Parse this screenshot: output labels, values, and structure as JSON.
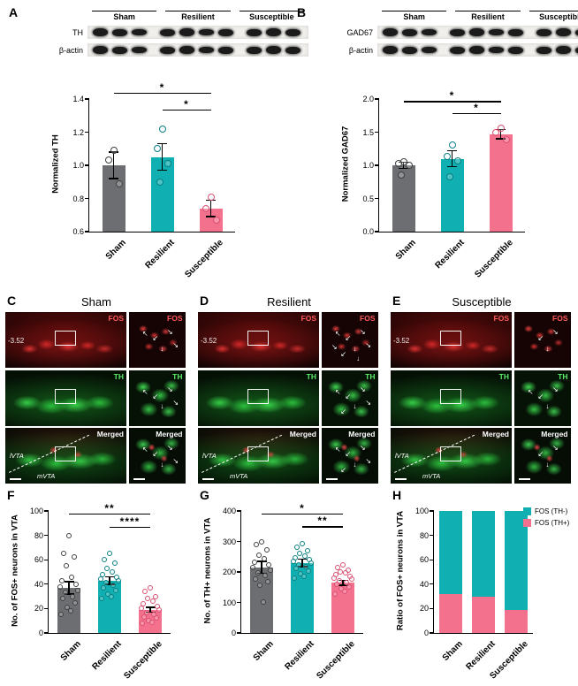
{
  "figure": {
    "panel_labels": [
      "A",
      "B",
      "C",
      "D",
      "E",
      "F",
      "G",
      "H"
    ]
  },
  "groups": [
    "Sham",
    "Resilient",
    "Susceptible"
  ],
  "colors": {
    "gray": "#6d6e71",
    "teal": "#10b0b2",
    "pink": "#f4718e",
    "gray_dark": "#3f4042",
    "teal_dark": "#0b7f81",
    "pink_dark": "#d94f71"
  },
  "western_blots": [
    {
      "panel": "A",
      "target": "TH",
      "loading_control": "β-actin",
      "lanes": [
        "Sham",
        "Resilient",
        "Susceptible"
      ]
    },
    {
      "panel": "B",
      "target": "GAD67",
      "loading_control": "β-actin",
      "lanes": [
        "Sham",
        "Resilient",
        "Susceptible"
      ]
    }
  ],
  "microscopy": {
    "coord_label": "-3.52",
    "row_labels": [
      "FOS",
      "TH",
      "Merged"
    ],
    "region_labels": {
      "lateral": "lVTA",
      "medial": "mVTA"
    },
    "panels": [
      {
        "label": "C",
        "title": "Sham"
      },
      {
        "label": "D",
        "title": "Resilient"
      },
      {
        "label": "E",
        "title": "Susceptible"
      }
    ]
  },
  "chart_data": [
    {
      "panel": "A",
      "type": "bar",
      "title": "",
      "ylabel": "Normalized TH",
      "xlabel": "",
      "categories": [
        "Sham",
        "Resilient",
        "Susceptible"
      ],
      "values": [
        1.0,
        1.05,
        0.74
      ],
      "errors": [
        0.08,
        0.08,
        0.05
      ],
      "points": [
        [
          1.09,
          1.03,
          0.89
        ],
        [
          1.22,
          1.1,
          1.01,
          0.9
        ],
        [
          0.81,
          0.74,
          0.67
        ]
      ],
      "ylim": [
        0.6,
        1.4
      ],
      "yticks": [
        "0.6",
        "0.8",
        "1.0",
        "1.2",
        "1.4"
      ],
      "grid": false,
      "point_size": 8,
      "sig": [
        {
          "a": 0,
          "b": 2,
          "label": "*",
          "y": 1.43
        },
        {
          "a": 1,
          "b": 2,
          "label": "*",
          "y": 1.33
        }
      ]
    },
    {
      "panel": "B",
      "type": "bar",
      "title": "",
      "ylabel": "Normalized GAD67",
      "xlabel": "",
      "categories": [
        "Sham",
        "Resilient",
        "Susceptible"
      ],
      "values": [
        1.0,
        1.1,
        1.47
      ],
      "errors": [
        0.05,
        0.12,
        0.07
      ],
      "points": [
        [
          1.06,
          1.03,
          1.0,
          0.86
        ],
        [
          1.31,
          1.14,
          1.07,
          0.83
        ],
        [
          1.56,
          1.49,
          1.39
        ]
      ],
      "ylim": [
        0.0,
        2.0
      ],
      "yticks": [
        "0.0",
        "0.5",
        "1.0",
        "1.5",
        "2.0"
      ],
      "grid": false,
      "point_size": 8,
      "sig": [
        {
          "a": 0,
          "b": 2,
          "label": "*",
          "y": 1.95
        },
        {
          "a": 1,
          "b": 2,
          "label": "*",
          "y": 1.77
        }
      ]
    },
    {
      "panel": "F",
      "type": "bar",
      "title": "",
      "ylabel": "No. of FOS+ neurons in VTA",
      "xlabel": "",
      "categories": [
        "Sham",
        "Resilient",
        "Susceptible"
      ],
      "values": [
        37,
        43,
        19
      ],
      "errors": [
        5,
        3,
        2
      ],
      "points": [
        [
          80,
          65,
          62,
          55,
          46,
          43,
          40,
          38,
          35,
          33,
          30,
          28,
          25,
          21,
          18,
          15
        ],
        [
          65,
          60,
          57,
          53,
          50,
          48,
          46,
          44,
          43,
          41,
          39,
          37,
          35,
          32,
          30,
          28
        ],
        [
          37,
          34,
          30,
          28,
          26,
          24,
          22,
          20,
          19,
          17,
          15,
          13,
          12,
          10,
          9,
          8
        ]
      ],
      "ylim": [
        0,
        100
      ],
      "yticks": [
        "0",
        "20",
        "40",
        "60",
        "80",
        "100"
      ],
      "grid": false,
      "point_size": 6,
      "sig": [
        {
          "a": 0,
          "b": 2,
          "label": "**",
          "y": 97
        },
        {
          "a": 1,
          "b": 2,
          "label": "****",
          "y": 86
        }
      ]
    },
    {
      "panel": "G",
      "type": "bar",
      "title": "",
      "ylabel": "No. of TH+ neurons in VTA",
      "xlabel": "",
      "categories": [
        "Sham",
        "Resilient",
        "Susceptible"
      ],
      "values": [
        215,
        230,
        165
      ],
      "errors": [
        20,
        12,
        8
      ],
      "points": [
        [
          300,
          290,
          272,
          255,
          243,
          232,
          222,
          214,
          205,
          196,
          188,
          178,
          168,
          156,
          102
        ],
        [
          292,
          280,
          271,
          262,
          253,
          246,
          240,
          234,
          229,
          224,
          218,
          211,
          202,
          193,
          186,
          179
        ],
        [
          222,
          214,
          207,
          201,
          196,
          191,
          186,
          181,
          176,
          171,
          166,
          160,
          152,
          144,
          135,
          128
        ]
      ],
      "ylim": [
        0,
        400
      ],
      "yticks": [
        "0",
        "100",
        "200",
        "300",
        "400"
      ],
      "grid": false,
      "point_size": 6,
      "sig": [
        {
          "a": 0,
          "b": 2,
          "label": "*",
          "y": 388
        },
        {
          "a": 1,
          "b": 2,
          "label": "**",
          "y": 345
        }
      ]
    },
    {
      "panel": "H",
      "type": "stacked-bar",
      "title": "",
      "ylabel": "Ratio of FOS+ neurons in VTA",
      "xlabel": "",
      "categories": [
        "Sham",
        "Resilient",
        "Susceptible"
      ],
      "series": [
        {
          "name": "FOS (TH+)",
          "color_key": "pink",
          "values": [
            32,
            30,
            19
          ]
        },
        {
          "name": "FOS (TH-)",
          "color_key": "teal",
          "values": [
            68,
            70,
            81
          ]
        }
      ],
      "ylim": [
        0,
        100
      ],
      "yticks": [
        "0",
        "20",
        "40",
        "60",
        "80",
        "100"
      ],
      "grid": false,
      "legend_position": "top-right",
      "legend": [
        {
          "label": "FOS (TH-)",
          "color_key": "teal"
        },
        {
          "label": "FOS (TH+)",
          "color_key": "pink"
        }
      ]
    }
  ]
}
